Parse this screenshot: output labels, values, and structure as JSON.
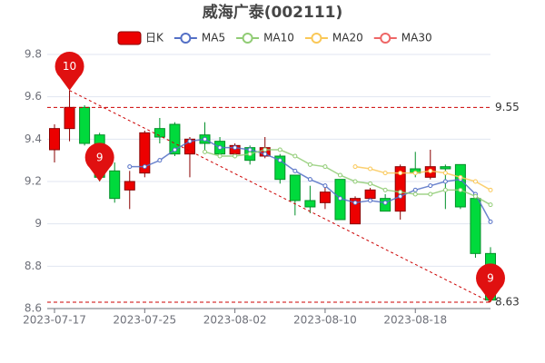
{
  "chart_data": {
    "type": "candlestick",
    "title": "威海广泰(002111)",
    "categories": [
      "2023-07-17",
      null,
      null,
      null,
      null,
      null,
      "2023-07-25",
      null,
      null,
      null,
      null,
      null,
      "2023-08-02",
      null,
      null,
      null,
      null,
      null,
      "2023-08-10",
      null,
      null,
      null,
      null,
      null,
      "2023-08-18",
      null,
      null,
      null,
      null,
      null
    ],
    "series": [
      {
        "name": "日K",
        "up_color": "#ec0000",
        "down_color": "#00da3c",
        "open": [
          9.35,
          9.45,
          9.55,
          9.42,
          9.25,
          9.16,
          9.24,
          9.45,
          9.47,
          9.33,
          9.42,
          9.39,
          9.33,
          9.36,
          9.32,
          9.32,
          9.23,
          9.11,
          9.1,
          9.21,
          9.0,
          9.12,
          9.12,
          9.06,
          9.26,
          9.22,
          9.27,
          9.28,
          9.12,
          8.86
        ],
        "close": [
          9.45,
          9.55,
          9.38,
          9.22,
          9.12,
          9.2,
          9.43,
          9.41,
          9.33,
          9.4,
          9.38,
          9.33,
          9.37,
          9.3,
          9.36,
          9.21,
          9.11,
          9.08,
          9.15,
          9.02,
          9.12,
          9.16,
          9.06,
          9.27,
          9.24,
          9.27,
          9.26,
          9.08,
          8.86,
          8.64
        ],
        "low": [
          9.29,
          9.39,
          9.37,
          9.2,
          9.1,
          9.07,
          9.22,
          9.38,
          9.32,
          9.22,
          9.34,
          9.32,
          9.31,
          9.28,
          9.31,
          9.19,
          9.04,
          9.05,
          9.07,
          9.02,
          9.0,
          9.11,
          9.06,
          9.02,
          9.22,
          9.21,
          9.07,
          9.07,
          8.84,
          8.63
        ],
        "high": [
          9.47,
          9.63,
          9.56,
          9.43,
          9.29,
          9.25,
          9.44,
          9.5,
          9.48,
          9.41,
          9.48,
          9.41,
          9.38,
          9.37,
          9.41,
          9.33,
          9.23,
          9.18,
          9.17,
          9.21,
          9.13,
          9.17,
          9.14,
          9.28,
          9.34,
          9.35,
          9.28,
          9.28,
          9.12,
          8.89
        ]
      },
      {
        "name": "MA5",
        "color": "#5470c6",
        "values": [
          null,
          null,
          null,
          null,
          null,
          9.27,
          9.27,
          9.3,
          9.35,
          9.39,
          9.4,
          9.36,
          9.36,
          9.35,
          9.33,
          9.3,
          9.25,
          9.21,
          9.18,
          9.12,
          9.1,
          9.11,
          9.1,
          9.13,
          9.16,
          9.18,
          9.2,
          9.21,
          9.14,
          9.01
        ]
      },
      {
        "name": "MA10",
        "color": "#91cc75",
        "values": [
          null,
          null,
          null,
          null,
          null,
          null,
          null,
          null,
          null,
          null,
          9.34,
          9.32,
          9.32,
          9.33,
          9.35,
          9.35,
          9.32,
          9.28,
          9.27,
          9.23,
          9.2,
          9.19,
          9.16,
          9.15,
          9.14,
          9.14,
          9.16,
          9.16,
          9.13,
          9.09
        ]
      },
      {
        "name": "MA20",
        "color": "#fac858",
        "values": [
          null,
          null,
          null,
          null,
          null,
          null,
          null,
          null,
          null,
          null,
          null,
          null,
          null,
          null,
          null,
          null,
          null,
          null,
          null,
          null,
          9.27,
          9.26,
          9.24,
          9.24,
          9.24,
          9.25,
          9.24,
          9.22,
          9.2,
          9.16
        ]
      },
      {
        "name": "MA30",
        "color": "#ee6666",
        "values": [
          null,
          null,
          null,
          null,
          null,
          null,
          null,
          null,
          null,
          null,
          null,
          null,
          null,
          null,
          null,
          null,
          null,
          null,
          null,
          null,
          null,
          null,
          null,
          null,
          null,
          null,
          null,
          null,
          null,
          null
        ]
      }
    ],
    "mark_lines": [
      9.55,
      8.63
    ],
    "trend_line": [
      9.63,
      8.63
    ],
    "mark_points": [
      {
        "value": 9.63,
        "label": "10"
      },
      {
        "value": 9.2,
        "label": "9"
      },
      {
        "value": 8.63,
        "label": "9"
      }
    ],
    "ylim": [
      8.6,
      9.8
    ],
    "yticks": [
      8.6,
      8.8,
      9,
      9.2,
      9.4,
      9.6,
      9.8
    ],
    "grid": true
  }
}
